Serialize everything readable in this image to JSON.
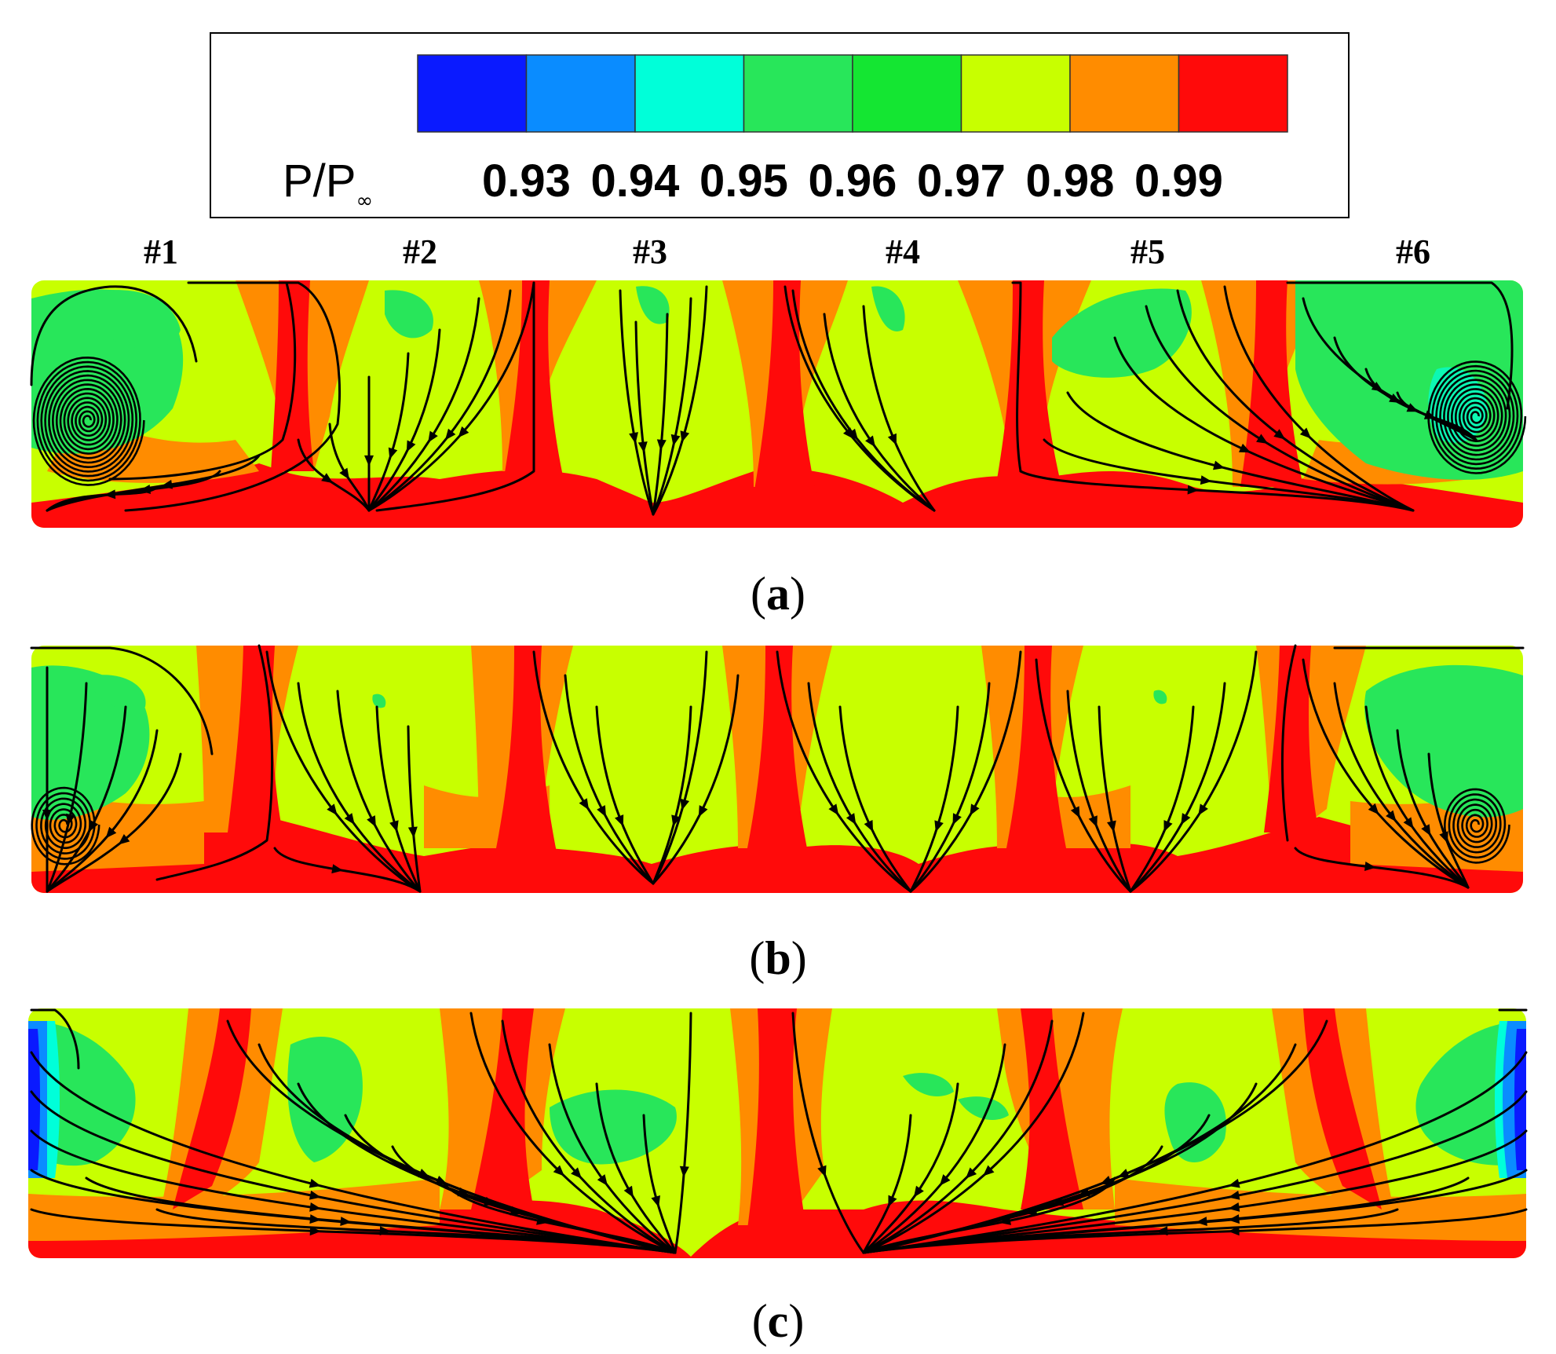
{
  "legend": {
    "variable": "P/P",
    "variable_subscript": "∞",
    "levels": [
      {
        "color": "#0a1aff"
      },
      {
        "color": "#0a8cff"
      },
      {
        "color": "#00ffd9"
      },
      {
        "color": "#28e65a"
      },
      {
        "color": "#14e632"
      },
      {
        "color": "#c8ff00"
      },
      {
        "color": "#ff8c00"
      },
      {
        "color": "#ff0a0a"
      }
    ],
    "ticks": [
      "0.93",
      "0.94",
      "0.95",
      "0.96",
      "0.97",
      "0.98",
      "0.99"
    ]
  },
  "channel_labels": [
    "#1",
    "#2",
    "#3",
    "#4",
    "#5",
    "#6"
  ],
  "panels": [
    {
      "label": "a",
      "vortices": "both-ends"
    },
    {
      "label": "b",
      "vortices": "both-ends"
    },
    {
      "label": "c",
      "vortices": "none"
    }
  ],
  "colors": {
    "blue": "#0a1aff",
    "mid_blue": "#0a8cff",
    "cyan": "#00ffd9",
    "green": "#28e65a",
    "yellow_green": "#c8ff00",
    "orange": "#ff8c00",
    "red": "#ff0a0a"
  }
}
